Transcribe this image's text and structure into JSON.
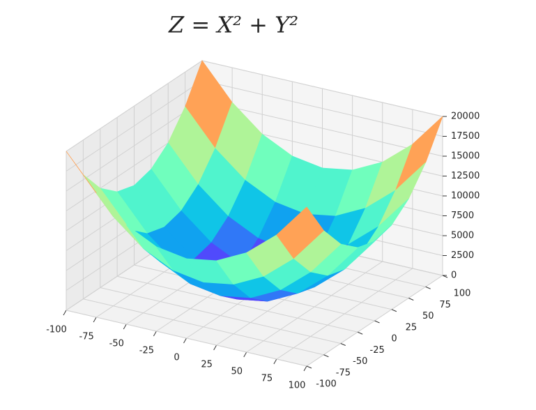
{
  "chart_data": {
    "type": "surface",
    "title": "Z = X² + Y²",
    "x": [
      -100,
      -75,
      -50,
      -25,
      0,
      25,
      50,
      75,
      100
    ],
    "y": [
      -100,
      -75,
      -50,
      -25,
      0,
      25,
      50,
      75,
      100
    ],
    "z": [
      [
        20000,
        15625,
        12500,
        10625,
        10000,
        10625,
        12500,
        15625,
        20000
      ],
      [
        15625,
        11250,
        8125,
        6250,
        5625,
        6250,
        8125,
        11250,
        15625
      ],
      [
        12500,
        8125,
        5000,
        3125,
        2500,
        3125,
        5000,
        8125,
        12500
      ],
      [
        10625,
        6250,
        3125,
        1250,
        625,
        1250,
        3125,
        6250,
        10625
      ],
      [
        10000,
        5625,
        2500,
        625,
        0,
        625,
        2500,
        5625,
        10000
      ],
      [
        10625,
        6250,
        3125,
        1250,
        625,
        1250,
        3125,
        6250,
        10625
      ],
      [
        12500,
        8125,
        5000,
        3125,
        2500,
        3125,
        5000,
        8125,
        12500
      ],
      [
        15625,
        11250,
        8125,
        6250,
        5625,
        6250,
        8125,
        11250,
        15625
      ],
      [
        20000,
        15625,
        12500,
        10625,
        10000,
        10625,
        12500,
        15625,
        20000
      ]
    ],
    "colormap": "rainbow",
    "xlim": [
      -100,
      100
    ],
    "ylim": [
      -100,
      100
    ],
    "zlim": [
      0,
      20000
    ],
    "xticks": [
      -100,
      -75,
      -50,
      -25,
      0,
      25,
      50,
      75,
      100
    ],
    "yticks": [
      -100,
      -75,
      -50,
      -25,
      0,
      25,
      50,
      75,
      100
    ],
    "zticks": [
      0,
      2500,
      5000,
      7500,
      10000,
      12500,
      15000,
      17500,
      20000
    ],
    "grid": true
  }
}
